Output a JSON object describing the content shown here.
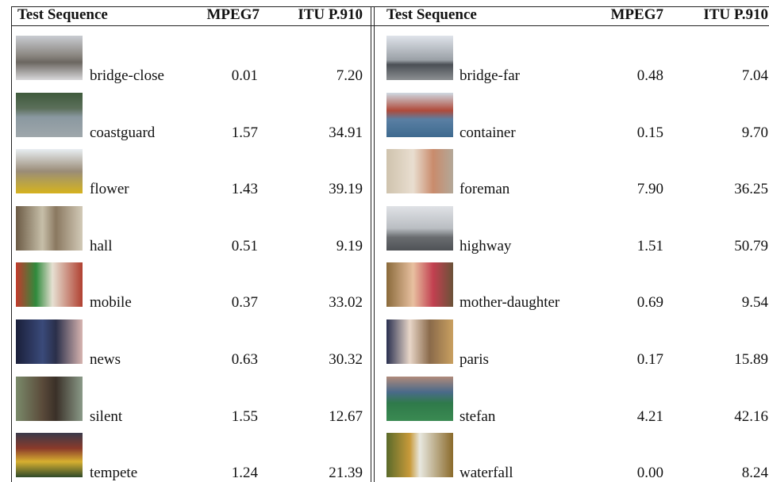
{
  "table": {
    "headers": [
      "Test Sequence",
      "MPEG7",
      "ITU P.910",
      "Test Sequence",
      "MPEG7",
      "ITU P.910"
    ],
    "rows": [
      [
        "bridge-close",
        "0.01",
        "7.20",
        "bridge-far",
        "0.48",
        "7.04"
      ],
      [
        "coastguard",
        "1.57",
        "34.91",
        "container",
        "0.15",
        "9.70"
      ],
      [
        "flower",
        "1.43",
        "39.19",
        "foreman",
        "7.90",
        "36.25"
      ],
      [
        "hall",
        "0.51",
        "9.19",
        "highway",
        "1.51",
        "50.79"
      ],
      [
        "mobile",
        "0.37",
        "33.02",
        "mother-daughter",
        "0.69",
        "9.54"
      ],
      [
        "news",
        "0.63",
        "30.32",
        "paris",
        "0.17",
        "15.89"
      ],
      [
        "silent",
        "1.55",
        "12.67",
        "stefan",
        "4.21",
        "42.16"
      ],
      [
        "tempete",
        "1.24",
        "21.39",
        "waterfall",
        "0.00",
        "8.24"
      ]
    ]
  }
}
